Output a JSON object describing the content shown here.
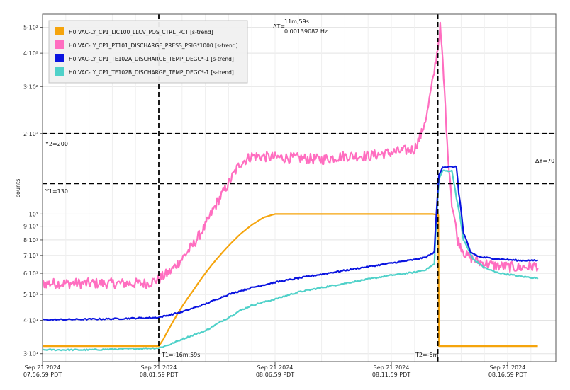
{
  "chart_data": {
    "type": "line",
    "ylabel": "counts",
    "yscale": "log",
    "ylim": [
      28,
      560
    ],
    "grid": true,
    "legend_position": "top-left",
    "x_ticks": [
      {
        "t": 0,
        "line1": "Sep 21 2024",
        "line2": "07:56:59 PDT"
      },
      {
        "t": 5,
        "line1": "Sep 21 2024",
        "line2": "08:01:59 PDT"
      },
      {
        "t": 10,
        "line1": "Sep 21 2024",
        "line2": "08:06:59 PDT"
      },
      {
        "t": 15,
        "line1": "Sep 21 2024",
        "line2": "08:11:59 PDT"
      },
      {
        "t": 20,
        "line1": "Sep 21 2024",
        "line2": "08:16:59 PDT"
      }
    ],
    "y_ticks": [
      {
        "v": 30,
        "label": "3·10¹"
      },
      {
        "v": 40,
        "label": "4·10¹"
      },
      {
        "v": 50,
        "label": "5·10¹"
      },
      {
        "v": 60,
        "label": "6·10¹"
      },
      {
        "v": 70,
        "label": "7·10¹"
      },
      {
        "v": 80,
        "label": "8·10¹"
      },
      {
        "v": 90,
        "label": "9·10¹"
      },
      {
        "v": 100,
        "label": "10²"
      },
      {
        "v": 200,
        "label": "2·10²"
      },
      {
        "v": 300,
        "label": "3·10²"
      },
      {
        "v": 400,
        "label": "4·10²"
      },
      {
        "v": 500,
        "label": "5·10²"
      }
    ],
    "series": [
      {
        "name": "H0:VAC-LY_CP1_LIC100_LLCV_POS_CTRL_PCT [s-trend]",
        "color": "#f5a40c",
        "noise": 0,
        "points": [
          [
            -1.8,
            32
          ],
          [
            5,
            32
          ],
          [
            5.2,
            34
          ],
          [
            5.5,
            38
          ],
          [
            6,
            45
          ],
          [
            6.5,
            52
          ],
          [
            7,
            60
          ],
          [
            7.5,
            68
          ],
          [
            8,
            76
          ],
          [
            8.5,
            84
          ],
          [
            9,
            91
          ],
          [
            9.5,
            97
          ],
          [
            10,
            100
          ],
          [
            16.8,
            100
          ],
          [
            17.02,
            99
          ],
          [
            17.05,
            32
          ],
          [
            21.3,
            32
          ]
        ]
      },
      {
        "name": "H0:VAC-LY_CP1_PT101_DISCHARGE_PRESS_PSIG*1000 [s-trend]",
        "color": "#ff6ec0",
        "noise": 0.045,
        "points": [
          [
            -1.8,
            54
          ],
          [
            0,
            55
          ],
          [
            2,
            55
          ],
          [
            4.5,
            55
          ],
          [
            5,
            57
          ],
          [
            5.5,
            61
          ],
          [
            6,
            68
          ],
          [
            6.5,
            77
          ],
          [
            7,
            90
          ],
          [
            7.5,
            110
          ],
          [
            8,
            130
          ],
          [
            8.5,
            155
          ],
          [
            9,
            165
          ],
          [
            10,
            163
          ],
          [
            11,
            162
          ],
          [
            12,
            160
          ],
          [
            13,
            165
          ],
          [
            14,
            165
          ],
          [
            15,
            170
          ],
          [
            16,
            175
          ],
          [
            16.3,
            200
          ],
          [
            16.55,
            240
          ],
          [
            16.8,
            320
          ],
          [
            17,
            420
          ],
          [
            17.1,
            500
          ],
          [
            17.25,
            320
          ],
          [
            17.4,
            180
          ],
          [
            17.6,
            110
          ],
          [
            17.85,
            80
          ],
          [
            18.2,
            70
          ],
          [
            18.8,
            66
          ],
          [
            19.5,
            64
          ],
          [
            20.5,
            63
          ],
          [
            21.3,
            64
          ]
        ]
      },
      {
        "name": "H0:VAC-LY_CP1_TE102A_DISCHARGE_TEMP_DEGC*-1 [s-trend]",
        "color": "#0a14e0",
        "noise": 0.006,
        "points": [
          [
            -1.8,
            40
          ],
          [
            3,
            40.5
          ],
          [
            5,
            41
          ],
          [
            6,
            43
          ],
          [
            7,
            46
          ],
          [
            8,
            50
          ],
          [
            9,
            53
          ],
          [
            10,
            55.5
          ],
          [
            11,
            57.5
          ],
          [
            12,
            59.5
          ],
          [
            13,
            61.5
          ],
          [
            14,
            63.5
          ],
          [
            15,
            65.5
          ],
          [
            16,
            67.5
          ],
          [
            16.5,
            69
          ],
          [
            16.85,
            72
          ],
          [
            16.95,
            105
          ],
          [
            17.05,
            140
          ],
          [
            17.2,
            150
          ],
          [
            17.8,
            150
          ],
          [
            17.9,
            120
          ],
          [
            18.1,
            85
          ],
          [
            18.4,
            72
          ],
          [
            18.8,
            69
          ],
          [
            19.5,
            68
          ],
          [
            20.5,
            67
          ],
          [
            21.3,
            67
          ]
        ]
      },
      {
        "name": "H0:VAC-LY_CP1_TE102B_DISCHARGE_TEMP_DEGC*-1 [s-trend]",
        "color": "#4fd1c9",
        "noise": 0.006,
        "points": [
          [
            -1.8,
            31
          ],
          [
            2,
            31
          ],
          [
            5,
            31.5
          ],
          [
            5.5,
            32.5
          ],
          [
            6,
            34
          ],
          [
            7,
            36.5
          ],
          [
            8,
            41
          ],
          [
            8.5,
            43.5
          ],
          [
            9,
            45.5
          ],
          [
            10,
            48
          ],
          [
            11,
            51
          ],
          [
            12,
            53
          ],
          [
            13,
            55
          ],
          [
            14,
            57
          ],
          [
            15,
            59
          ],
          [
            16,
            60.5
          ],
          [
            16.5,
            62
          ],
          [
            16.85,
            65
          ],
          [
            16.95,
            100
          ],
          [
            17.05,
            135
          ],
          [
            17.2,
            145
          ],
          [
            17.6,
            145
          ],
          [
            17.8,
            115
          ],
          [
            18.1,
            80
          ],
          [
            18.5,
            68
          ],
          [
            19,
            63
          ],
          [
            19.5,
            60.5
          ],
          [
            20.5,
            58.5
          ],
          [
            21.3,
            57.5
          ]
        ]
      }
    ],
    "cursors": {
      "T1": {
        "t": 5,
        "label": "T1=-16m,59s"
      },
      "T2": {
        "t": 17,
        "label": "T2=-5m"
      },
      "Y1": {
        "v": 130,
        "label": "Y1=130"
      },
      "Y2": {
        "v": 200,
        "label": "Y2=200"
      },
      "delta_t_label": "ΔT=",
      "delta_t_value": "11m,59s",
      "delta_t_freq": "0.00139082 Hz",
      "delta_y_label": "ΔY=70"
    }
  }
}
